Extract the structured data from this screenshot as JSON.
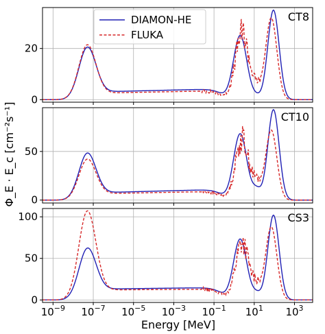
{
  "chart_data": {
    "type": "line",
    "xlabel": "Energy [MeV]",
    "ylabel": "Φ_E · E_c [cm⁻²s⁻¹]",
    "xscale": "log",
    "xlim": [
      3e-10,
      8000
    ],
    "grid": true,
    "legend": {
      "placement": "top-left",
      "entries": [
        "DIAMON-HE",
        "FLUKA"
      ]
    },
    "x_ticks": [
      {
        "value": 1e-09,
        "base": "10",
        "exp": "−9"
      },
      {
        "value": 1e-07,
        "base": "10",
        "exp": "−7"
      },
      {
        "value": 1e-05,
        "base": "10",
        "exp": "−5"
      },
      {
        "value": 0.001,
        "base": "10",
        "exp": "−3"
      },
      {
        "value": 0.1,
        "base": "10",
        "exp": "−1"
      },
      {
        "value": 10,
        "base": "10",
        "exp": "1"
      },
      {
        "value": 1000,
        "base": "10",
        "exp": "3"
      }
    ],
    "series_styles": [
      {
        "name": "DIAMON-HE",
        "color": "#1f1fb4",
        "dash": "solid"
      },
      {
        "name": "FLUKA",
        "color": "#d62728",
        "dash": "dashed"
      }
    ],
    "panels": [
      {
        "label": "CT8",
        "ylim": [
          -1,
          36
        ],
        "yticks": [
          0,
          20
        ],
        "series": [
          {
            "name": "DIAMON-HE",
            "peaks": {
              "thermal": 20,
              "plateau_start": 3.0,
              "plateau_end": 4.2,
              "evap_peak": 25,
              "evap_energy": 2,
              "dip": 2,
              "high_peak": 35,
              "high_energy": 90
            }
          },
          {
            "name": "FLUKA",
            "peaks": {
              "thermal": 21,
              "plateau_start": 2.5,
              "plateau_end": 3.5,
              "evap_peak": 26,
              "evap_energy": 2.5,
              "dip": 7,
              "high_peak": 32,
              "high_energy": 70
            }
          }
        ]
      },
      {
        "label": "CT10",
        "ylim": [
          -3,
          95
        ],
        "yticks": [
          0,
          50
        ],
        "series": [
          {
            "name": "DIAMON-HE",
            "peaks": {
              "thermal": 47,
              "plateau_start": 7.5,
              "plateau_end": 11,
              "evap_peak": 68,
              "evap_energy": 2,
              "dip": 17,
              "high_peak": 93,
              "high_energy": 90
            }
          },
          {
            "name": "FLUKA",
            "peaks": {
              "thermal": 41,
              "plateau_start": 6.5,
              "plateau_end": 9,
              "evap_peak": 63,
              "evap_energy": 2.5,
              "dip": 25,
              "high_peak": 72,
              "high_energy": 70
            }
          }
        ]
      },
      {
        "label": "CS3",
        "ylim": [
          -3,
          110
        ],
        "yticks": [
          0,
          50,
          100
        ],
        "series": [
          {
            "name": "DIAMON-HE",
            "peaks": {
              "thermal": 60,
              "plateau_start": 13,
              "plateau_end": 15,
              "evap_peak": 73,
              "evap_energy": 2,
              "dip": 12,
              "high_peak": 102,
              "high_energy": 90
            }
          },
          {
            "name": "FLUKA",
            "peaks": {
              "thermal": 105,
              "plateau_start": 12,
              "plateau_end": 13,
              "evap_peak": 70,
              "evap_energy": 2.5,
              "dip": 25,
              "high_peak": 88,
              "high_energy": 70
            }
          }
        ]
      }
    ]
  }
}
